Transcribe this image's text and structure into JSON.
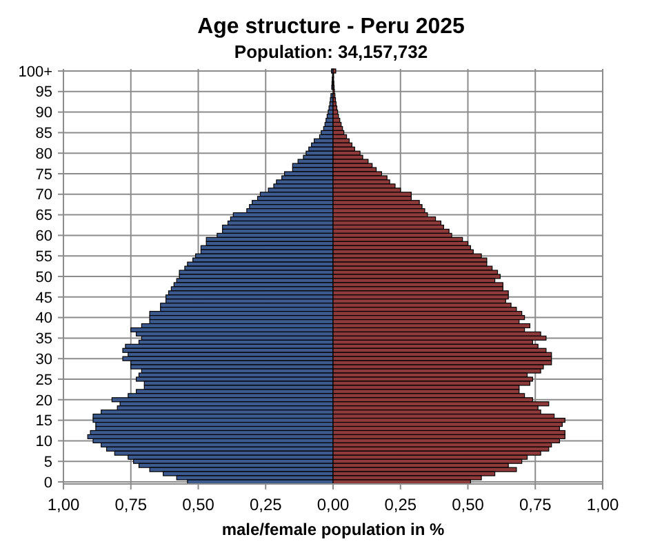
{
  "chart_data": {
    "type": "bar",
    "orientation": "horizontal",
    "stacked": true,
    "title": "Age structure - Peru 2025",
    "subtitle": "Population: 34,157,732",
    "xlabel": "male/female population  in %",
    "categories": [
      "100+",
      null,
      null,
      null,
      null,
      "95",
      null,
      null,
      null,
      null,
      "90",
      null,
      null,
      null,
      null,
      "85",
      null,
      null,
      null,
      null,
      "80",
      null,
      null,
      null,
      null,
      "75",
      null,
      null,
      null,
      null,
      "70",
      null,
      null,
      null,
      null,
      "65",
      null,
      null,
      null,
      null,
      "60",
      null,
      null,
      null,
      null,
      "55",
      null,
      null,
      null,
      null,
      "50",
      null,
      null,
      null,
      null,
      "45",
      null,
      null,
      null,
      null,
      "40",
      null,
      null,
      null,
      null,
      "35",
      null,
      null,
      null,
      null,
      "30",
      null,
      null,
      null,
      null,
      "25",
      null,
      null,
      null,
      null,
      "20",
      null,
      null,
      null,
      null,
      "15",
      null,
      null,
      null,
      null,
      "10",
      null,
      null,
      null,
      null,
      "5",
      null,
      null,
      null,
      null,
      "0"
    ],
    "series": [
      {
        "color": "#3c5a8e",
        "values": [
          -0.006,
          -0.002,
          -0.003,
          -0.004,
          -0.005,
          null,
          -0.008,
          -0.01,
          -0.012,
          -0.015,
          -0.018,
          -0.022,
          -0.026,
          -0.03,
          -0.035,
          -0.044,
          -0.05,
          -0.07,
          -0.08,
          -0.09,
          -0.1,
          -0.11,
          -0.13,
          -0.15,
          -0.15,
          -0.18,
          -0.19,
          -0.21,
          -0.22,
          -0.24,
          -0.27,
          -0.28,
          -0.3,
          -0.31,
          -0.32,
          -0.37,
          -0.38,
          -0.39,
          -0.41,
          -0.41,
          -0.43,
          -0.47,
          -0.47,
          -0.49,
          -0.49,
          -0.51,
          -0.52,
          -0.54,
          -0.55,
          -0.57,
          -0.57,
          -0.58,
          -0.59,
          -0.6,
          -0.61,
          -0.62,
          -0.62,
          -0.64,
          -0.64,
          -0.68,
          -0.68,
          -0.68,
          -0.71,
          -0.75,
          -0.73,
          -0.71,
          -0.72,
          -0.77,
          -0.78,
          -0.76,
          -0.78,
          -0.75,
          -0.75,
          -0.71,
          -0.72,
          -0.73,
          -0.7,
          -0.7,
          -0.73,
          -0.76,
          -0.82,
          -0.79,
          -0.8,
          -0.86,
          -0.89,
          -0.89,
          -0.88,
          -0.88,
          -0.9,
          -0.91,
          -0.89,
          -0.86,
          -0.84,
          -0.81,
          -0.76,
          -0.74,
          -0.72,
          -0.68,
          -0.63,
          -0.58,
          -0.54
        ]
      },
      {
        "color": "#8e3a3a",
        "values": [
          0.01,
          0.002,
          0.002,
          0.003,
          0.004,
          0.005,
          0.007,
          0.009,
          0.011,
          0.014,
          0.017,
          0.02,
          0.025,
          0.03,
          0.035,
          0.04,
          0.05,
          0.06,
          0.07,
          0.08,
          0.1,
          0.11,
          0.13,
          0.145,
          0.16,
          0.18,
          0.2,
          0.21,
          0.23,
          0.25,
          0.29,
          0.29,
          0.32,
          0.33,
          0.34,
          0.35,
          0.38,
          0.4,
          0.41,
          0.43,
          0.44,
          0.48,
          0.5,
          0.51,
          0.52,
          0.55,
          0.57,
          0.57,
          0.59,
          0.61,
          0.62,
          0.6,
          0.63,
          0.63,
          0.65,
          0.65,
          0.64,
          0.66,
          0.68,
          0.7,
          0.71,
          0.69,
          0.73,
          0.71,
          0.77,
          0.79,
          0.74,
          0.76,
          0.79,
          0.81,
          0.81,
          0.81,
          0.78,
          0.77,
          0.72,
          0.74,
          0.73,
          0.69,
          0.69,
          0.71,
          0.74,
          0.8,
          0.76,
          0.77,
          0.82,
          0.86,
          0.85,
          0.84,
          0.86,
          0.86,
          0.84,
          0.81,
          0.8,
          0.77,
          0.72,
          0.7,
          0.65,
          0.68,
          0.6,
          0.55,
          0.51
        ]
      }
    ],
    "xlim": [
      -1,
      1
    ],
    "xticks": [
      {
        "value": -1,
        "label": "1,00"
      },
      {
        "value": -0.75,
        "label": "0,75"
      },
      {
        "value": -0.5,
        "label": "0,50"
      },
      {
        "value": -0.25,
        "label": "0,25"
      },
      {
        "value": 0,
        "label": "0,00"
      },
      {
        "value": 0.25,
        "label": "0,25"
      },
      {
        "value": 0.5,
        "label": "0,50"
      },
      {
        "value": 0.75,
        "label": "0,75"
      },
      {
        "value": 1,
        "label": "1,00"
      }
    ],
    "grid": true
  }
}
